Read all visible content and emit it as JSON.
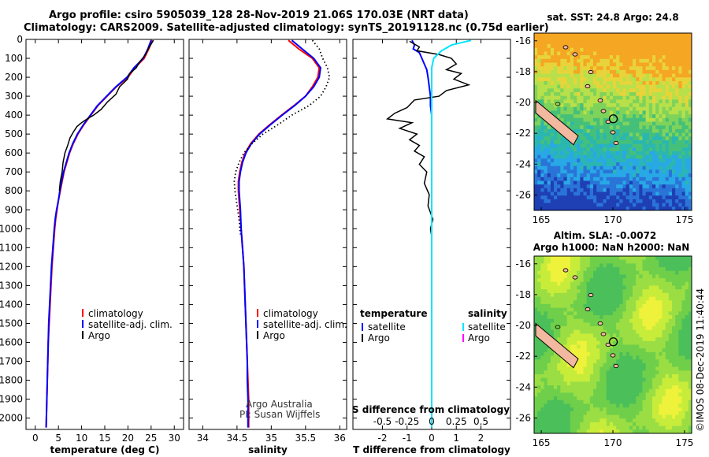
{
  "title": {
    "line1": "Argo profile: csiro 5905039_128 28-Nov-2019 21.06S 170.03E (NRT data)",
    "line2": "Climatology: CARS2009. Satellite-adjusted climatology: synTS_20191128.nc (0.75d earlier)"
  },
  "colors": {
    "climatology": "#ff0000",
    "satellite": "#0000ff",
    "argo": "#000000",
    "s_satellite": "#00e5ff",
    "s_argo": "#ff00ff"
  },
  "credit": "©IMOS 08-Dec-2019 11:40:44",
  "chart_data": [
    {
      "type": "line",
      "xlabel": "temperature (deg C)",
      "ylabel": "",
      "xlim": [
        -2,
        32
      ],
      "ylim": [
        2060,
        0
      ],
      "xticks": [
        0,
        5,
        10,
        15,
        20,
        25,
        30
      ],
      "yticks": [
        0,
        100,
        200,
        300,
        400,
        500,
        600,
        700,
        800,
        900,
        1000,
        1100,
        1200,
        1300,
        1400,
        1500,
        1600,
        1700,
        1800,
        1900,
        2000
      ],
      "legend": [
        "climatology",
        "satellite-adj. clim.",
        "Argo"
      ],
      "series": [
        {
          "name": "climatology",
          "points": [
            [
              25.3,
              5
            ],
            [
              24.5,
              50
            ],
            [
              23.5,
              100
            ],
            [
              21.5,
              150
            ],
            [
              20,
              200
            ],
            [
              17.5,
              250
            ],
            [
              15.5,
              300
            ],
            [
              13.5,
              350
            ],
            [
              12,
              400
            ],
            [
              10.5,
              450
            ],
            [
              9.2,
              500
            ],
            [
              8.2,
              550
            ],
            [
              7.4,
              600
            ],
            [
              6.8,
              650
            ],
            [
              6.2,
              700
            ],
            [
              5.8,
              750
            ],
            [
              5.4,
              800
            ],
            [
              5.0,
              850
            ],
            [
              4.7,
              900
            ],
            [
              4.4,
              950
            ],
            [
              4.2,
              1000
            ],
            [
              3.9,
              1100
            ],
            [
              3.6,
              1200
            ],
            [
              3.4,
              1300
            ],
            [
              3.2,
              1400
            ],
            [
              3.0,
              1500
            ],
            [
              2.8,
              1600
            ],
            [
              2.7,
              1700
            ],
            [
              2.6,
              1800
            ],
            [
              2.5,
              1900
            ],
            [
              2.4,
              2000
            ],
            [
              2.35,
              2050
            ]
          ]
        },
        {
          "name": "satellite-adj. clim.",
          "points": [
            [
              25,
              5
            ],
            [
              24.3,
              50
            ],
            [
              23.3,
              100
            ],
            [
              21.3,
              150
            ],
            [
              19.8,
              200
            ],
            [
              17.4,
              250
            ],
            [
              15.4,
              300
            ],
            [
              13.4,
              350
            ],
            [
              11.9,
              400
            ],
            [
              10.4,
              450
            ],
            [
              9.1,
              500
            ],
            [
              8.1,
              550
            ],
            [
              7.3,
              600
            ],
            [
              6.7,
              650
            ],
            [
              6.1,
              700
            ],
            [
              5.7,
              750
            ],
            [
              5.3,
              800
            ],
            [
              5.0,
              850
            ],
            [
              4.6,
              900
            ],
            [
              4.3,
              950
            ],
            [
              4.1,
              1000
            ],
            [
              3.8,
              1100
            ],
            [
              3.5,
              1200
            ],
            [
              3.3,
              1300
            ],
            [
              3.1,
              1400
            ],
            [
              2.9,
              1500
            ],
            [
              2.8,
              1600
            ],
            [
              2.7,
              1700
            ],
            [
              2.6,
              1800
            ],
            [
              2.5,
              1900
            ],
            [
              2.4,
              2000
            ],
            [
              2.35,
              2050
            ]
          ]
        },
        {
          "name": "Argo",
          "points": [
            [
              25.5,
              5
            ],
            [
              24.6,
              40
            ],
            [
              23.8,
              80
            ],
            [
              22.5,
              120
            ],
            [
              21.8,
              150
            ],
            [
              20.4,
              180
            ],
            [
              19.9,
              210
            ],
            [
              18.2,
              250
            ],
            [
              17.4,
              290
            ],
            [
              15.6,
              330
            ],
            [
              14.2,
              370
            ],
            [
              12.6,
              400
            ],
            [
              11.2,
              420
            ],
            [
              10.0,
              440
            ],
            [
              9.0,
              460
            ],
            [
              8.2,
              490
            ],
            [
              7.5,
              520
            ],
            [
              7.0,
              560
            ],
            [
              6.4,
              600
            ],
            [
              6.0,
              650
            ],
            [
              5.8,
              700
            ],
            [
              5.4,
              750
            ],
            [
              5.2,
              800
            ]
          ]
        }
      ]
    },
    {
      "type": "line",
      "xlabel": "salinity",
      "ylabel": "",
      "xlim": [
        33.8,
        36.1
      ],
      "ylim": [
        2060,
        0
      ],
      "xticks": [
        34,
        34.5,
        35,
        35.5,
        36
      ],
      "legend": [
        "climatology",
        "satellite-adj. clim.",
        "Argo"
      ],
      "annotation": [
        "Argo Australia",
        "PI: Susan Wijffels"
      ],
      "series": [
        {
          "name": "climatology",
          "points": [
            [
              35.25,
              5
            ],
            [
              35.4,
              50
            ],
            [
              35.6,
              100
            ],
            [
              35.7,
              150
            ],
            [
              35.68,
              200
            ],
            [
              35.6,
              250
            ],
            [
              35.5,
              300
            ],
            [
              35.33,
              350
            ],
            [
              35.15,
              400
            ],
            [
              34.98,
              450
            ],
            [
              34.82,
              500
            ],
            [
              34.7,
              550
            ],
            [
              34.62,
              600
            ],
            [
              34.57,
              650
            ],
            [
              34.54,
              700
            ],
            [
              34.52,
              750
            ],
            [
              34.52,
              800
            ],
            [
              34.53,
              850
            ],
            [
              34.54,
              900
            ],
            [
              34.56,
              1000
            ],
            [
              34.58,
              1100
            ],
            [
              34.6,
              1200
            ],
            [
              34.61,
              1300
            ],
            [
              34.62,
              1400
            ],
            [
              34.63,
              1500
            ],
            [
              34.64,
              1600
            ],
            [
              34.65,
              1700
            ],
            [
              34.66,
              1800
            ],
            [
              34.67,
              1900
            ],
            [
              34.67,
              2000
            ],
            [
              34.67,
              2050
            ]
          ]
        },
        {
          "name": "satellite-adj. clim.",
          "points": [
            [
              35.3,
              5
            ],
            [
              35.45,
              50
            ],
            [
              35.62,
              100
            ],
            [
              35.72,
              150
            ],
            [
              35.7,
              200
            ],
            [
              35.62,
              250
            ],
            [
              35.5,
              300
            ],
            [
              35.34,
              350
            ],
            [
              35.16,
              400
            ],
            [
              34.99,
              450
            ],
            [
              34.83,
              500
            ],
            [
              34.71,
              550
            ],
            [
              34.63,
              600
            ],
            [
              34.58,
              650
            ],
            [
              34.55,
              700
            ],
            [
              34.53,
              750
            ],
            [
              34.53,
              800
            ],
            [
              34.54,
              850
            ],
            [
              34.55,
              900
            ],
            [
              34.56,
              1000
            ],
            [
              34.58,
              1100
            ],
            [
              34.6,
              1200
            ],
            [
              34.61,
              1300
            ],
            [
              34.62,
              1400
            ],
            [
              34.63,
              1500
            ],
            [
              34.64,
              1600
            ],
            [
              34.65,
              1700
            ],
            [
              34.65,
              1800
            ],
            [
              34.66,
              1900
            ],
            [
              34.66,
              2000
            ],
            [
              34.66,
              2050
            ]
          ]
        },
        {
          "name": "Argo",
          "points": [
            [
              35.6,
              5
            ],
            [
              35.7,
              50
            ],
            [
              35.75,
              100
            ],
            [
              35.82,
              150
            ],
            [
              35.85,
              200
            ],
            [
              35.8,
              250
            ],
            [
              35.72,
              300
            ],
            [
              35.55,
              350
            ],
            [
              35.3,
              400
            ],
            [
              35.1,
              450
            ],
            [
              34.88,
              500
            ],
            [
              34.72,
              550
            ],
            [
              34.6,
              600
            ],
            [
              34.53,
              650
            ],
            [
              34.48,
              700
            ],
            [
              34.46,
              750
            ],
            [
              34.47,
              800
            ],
            [
              34.49,
              850
            ],
            [
              34.51,
              900
            ],
            [
              34.53,
              950
            ],
            [
              34.54,
              1000
            ],
            [
              34.55,
              1030
            ]
          ]
        }
      ]
    },
    {
      "type": "line",
      "xlabel": "T difference from climatology",
      "ylabel": "",
      "xlim": [
        -3.2,
        3.2
      ],
      "ylim": [
        2060,
        0
      ],
      "xticks": [
        -2,
        -1,
        0,
        1,
        2
      ],
      "top_axis_label": "S difference from climatology",
      "top_ticks": [
        -0.5,
        -0.25,
        0,
        0.25,
        0.5
      ],
      "legend_left": {
        "title": "temperature",
        "items": [
          "satellite",
          "Argo"
        ]
      },
      "legend_right": {
        "title": "salinity",
        "items": [
          "satellite",
          "Argo"
        ]
      },
      "series": [
        {
          "name": "T satellite",
          "points": [
            [
              -0.8,
              5
            ],
            [
              -0.7,
              30
            ],
            [
              -0.75,
              50
            ],
            [
              -0.5,
              70
            ],
            [
              -0.4,
              100
            ],
            [
              -0.3,
              130
            ],
            [
              -0.2,
              160
            ],
            [
              -0.15,
              200
            ],
            [
              -0.1,
              250
            ],
            [
              -0.05,
              300
            ],
            [
              -0.05,
              350
            ],
            [
              0,
              400
            ],
            [
              0,
              600
            ],
            [
              0,
              1000
            ],
            [
              0,
              2050
            ]
          ]
        },
        {
          "name": "T Argo",
          "points": [
            [
              -0.9,
              10
            ],
            [
              -0.5,
              40
            ],
            [
              -0.6,
              60
            ],
            [
              0.3,
              80
            ],
            [
              0.8,
              100
            ],
            [
              1.0,
              130
            ],
            [
              0.6,
              160
            ],
            [
              1.2,
              180
            ],
            [
              0.9,
              210
            ],
            [
              1.5,
              240
            ],
            [
              0.6,
              270
            ],
            [
              0.3,
              300
            ],
            [
              -0.7,
              320
            ],
            [
              -1.0,
              360
            ],
            [
              -1.5,
              390
            ],
            [
              -1.8,
              420
            ],
            [
              -0.8,
              440
            ],
            [
              -1.3,
              470
            ],
            [
              -0.6,
              500
            ],
            [
              -0.9,
              530
            ],
            [
              -0.5,
              560
            ],
            [
              -0.7,
              590
            ],
            [
              -0.3,
              620
            ],
            [
              -0.5,
              660
            ],
            [
              -0.2,
              700
            ],
            [
              -0.3,
              760
            ],
            [
              -0.1,
              820
            ],
            [
              -0.15,
              880
            ],
            [
              0.05,
              950
            ],
            [
              -0.05,
              1000
            ],
            [
              0,
              1040
            ]
          ]
        },
        {
          "name": "S satellite",
          "points": [
            [
              0.4,
              5
            ],
            [
              0.2,
              30
            ],
            [
              0.1,
              60
            ],
            [
              0.02,
              100
            ],
            [
              0,
              150
            ],
            [
              0,
              300
            ],
            [
              0,
              600
            ],
            [
              0,
              2050
            ]
          ]
        }
      ]
    }
  ],
  "maps": [
    {
      "title": "sat. SST: 24.8 Argo: 24.8",
      "xticks": [
        165,
        170,
        175
      ],
      "yticks": [
        -16,
        -18,
        -20,
        -22,
        -24,
        -26
      ],
      "kind": "sst"
    },
    {
      "title_line1": "Altim. SLA: -0.0072",
      "title_line2": "Argo h1000: NaN h2000: NaN",
      "xticks": [
        165,
        170,
        175
      ],
      "yticks": [
        -16,
        -18,
        -20,
        -22,
        -24,
        -26
      ],
      "kind": "sla"
    }
  ]
}
